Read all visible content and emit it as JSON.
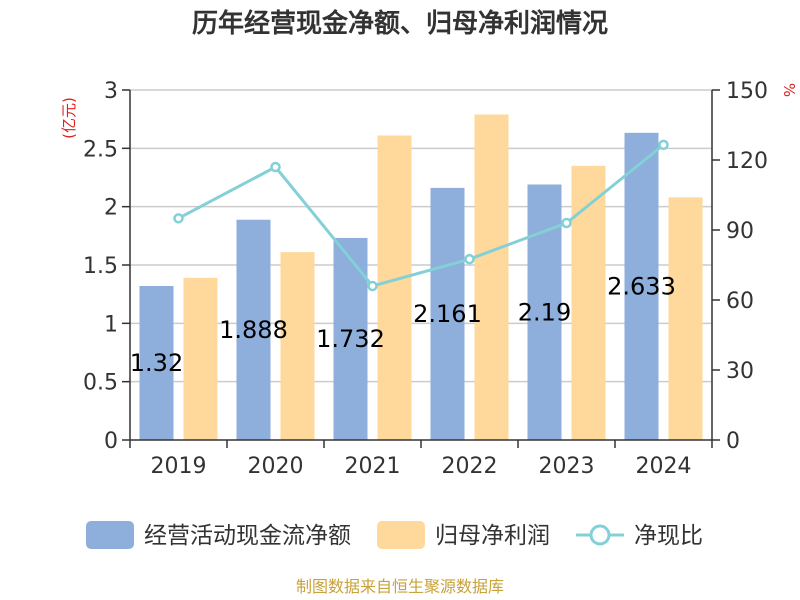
{
  "title": "历年经营现金净额、归母净利润情况",
  "source": "制图数据来自恒生聚源数据库",
  "chart_data": {
    "type": "bar",
    "categories": [
      "2019",
      "2020",
      "2021",
      "2022",
      "2023",
      "2024"
    ],
    "series": [
      {
        "name": "经营活动现金流净额",
        "kind": "bar",
        "axis": "left",
        "color": "#8eaedb",
        "values": [
          1.32,
          1.888,
          1.732,
          2.161,
          2.19,
          2.633
        ],
        "labels": [
          "1.32",
          "1.888",
          "1.732",
          "2.161",
          "2.19",
          "2.633"
        ]
      },
      {
        "name": "归母净利润",
        "kind": "bar",
        "axis": "left",
        "color": "#fed99b",
        "values": [
          1.39,
          1.61,
          2.61,
          2.79,
          2.35,
          2.08
        ]
      },
      {
        "name": "净现比",
        "kind": "line",
        "axis": "right",
        "color": "#83d0d7",
        "values": [
          95,
          117,
          66,
          77.5,
          93,
          126.5
        ]
      }
    ],
    "y_left": {
      "unit": "(亿元)",
      "ylim": [
        0,
        3
      ],
      "ticks": [
        "0",
        "0.5",
        "1",
        "1.5",
        "2",
        "2.5",
        "3"
      ]
    },
    "y_right": {
      "unit": "%",
      "ylim": [
        0,
        150
      ],
      "ticks": [
        "0",
        "30",
        "60",
        "90",
        "120",
        "150"
      ]
    },
    "grid": true,
    "legend": "bottom"
  }
}
